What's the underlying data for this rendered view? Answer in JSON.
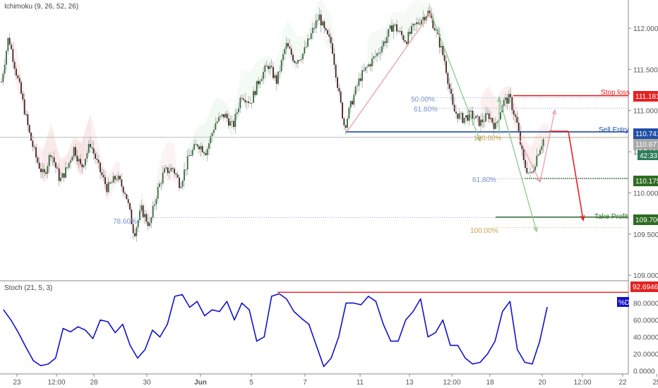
{
  "main_panel": {
    "indicator_label": "Ichimoku (9, 26, 52, 26)",
    "price_ticks": [
      "112.000",
      "111.500",
      "111.000",
      "110.500",
      "110.000",
      "109.500",
      "109.000"
    ],
    "price_tick_values": [
      112.0,
      111.5,
      111.0,
      110.5,
      110.0,
      109.5,
      109.0
    ],
    "price_range": [
      108.95,
      112.3
    ],
    "levels": {
      "stop_loss": {
        "label": "Stop loss",
        "value": "111.181",
        "color": "#e32222"
      },
      "sell_entry": {
        "label": "Sell Entry",
        "value": "110.741",
        "color": "#1f4fa8"
      },
      "current_price": {
        "value": "110.677",
        "color": "#b0b0b0"
      },
      "countdown": {
        "value": "42:33",
        "color": "#2e7d5a"
      },
      "mid_level": {
        "value": "110.175",
        "color": "#2e6b23"
      },
      "take_profit": {
        "label": "Take Profit",
        "value": "109.706",
        "color": "#2e6b23"
      }
    },
    "fib_labels": {
      "f50": "50.00%",
      "f618_a": "61.80%",
      "f100_a": "100.00%",
      "f618_b": "61.80%",
      "f786": "78.60%",
      "f100_b": "100.00%"
    }
  },
  "stoch_panel": {
    "indicator_label": "Stoch (21, 5, 3)",
    "ticks": [
      "80.0000",
      "60.0000",
      "40.0000",
      "20.0000",
      "0.0000"
    ],
    "tick_values": [
      80,
      60,
      40,
      20,
      0
    ],
    "range": [
      -2,
      103
    ],
    "level": {
      "value": "92.6946",
      "color": "#e32222"
    },
    "d_label": "%D",
    "line_color": "#1111cc"
  },
  "x_axis": {
    "labels": [
      "23",
      "12:00",
      "28",
      "30",
      "Jun",
      "5",
      "7",
      "11",
      "13",
      "12:00",
      "18",
      "20",
      "12:00",
      "22",
      "25"
    ]
  },
  "chart_data": {
    "type": "line",
    "series": [
      {
        "name": "%D",
        "values": [
          72,
          60,
          45,
          28,
          12,
          6,
          8,
          15,
          50,
          46,
          52,
          48,
          38,
          60,
          58,
          45,
          55,
          30,
          15,
          25,
          48,
          40,
          55,
          88,
          90,
          75,
          82,
          65,
          72,
          70,
          82,
          60,
          80,
          72,
          35,
          40,
          88,
          91,
          85,
          70,
          62,
          55,
          30,
          5,
          15,
          40,
          80,
          80,
          78,
          88,
          82,
          55,
          35,
          35,
          60,
          70,
          85,
          40,
          45,
          60,
          30,
          30,
          15,
          8,
          10,
          20,
          35,
          70,
          82,
          25,
          10,
          8,
          35,
          75
        ]
      }
    ],
    "ylim": [
      0,
      100
    ]
  }
}
